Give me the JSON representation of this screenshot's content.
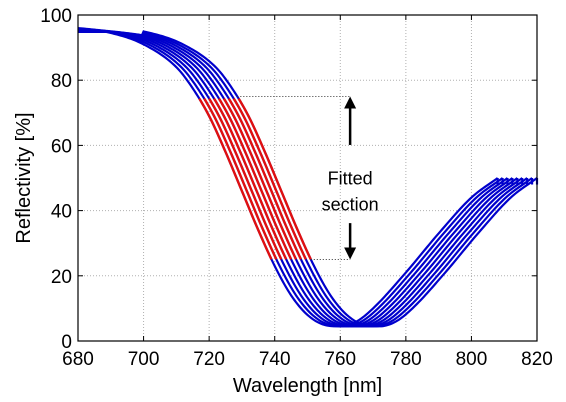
{
  "chart_data": {
    "type": "line",
    "title": "",
    "xlabel": "Wavelength [nm]",
    "ylabel": "Reflectivity [%]",
    "xlim": [
      680,
      820
    ],
    "ylim": [
      0,
      100
    ],
    "xticks": [
      680,
      700,
      720,
      740,
      760,
      780,
      800,
      820
    ],
    "yticks": [
      0,
      20,
      40,
      60,
      80,
      100
    ],
    "xtick_labels": [
      "680",
      "700",
      "720",
      "740",
      "760",
      "780",
      "800",
      "820"
    ],
    "ytick_labels": [
      "0",
      "20",
      "40",
      "60",
      "80",
      "100"
    ],
    "grid": true,
    "legend": "none",
    "colors": {
      "curve": "#0000cc",
      "fitted_section": "#e01010",
      "axis": "#000000",
      "grid": "#b0b0b0"
    },
    "series_shape": {
      "x": [
        680,
        690,
        700,
        710,
        715,
        720,
        725,
        730,
        735,
        740,
        745,
        750,
        755,
        760,
        765,
        770,
        780,
        790,
        800,
        808
      ],
      "y": [
        96,
        94.5,
        91,
        84,
        77.5,
        69,
        58,
        46,
        34,
        23,
        14,
        8,
        5,
        4.5,
        6,
        10,
        21,
        33,
        44,
        50
      ]
    },
    "curve_shifts_nm": [
      0,
      1.5,
      3,
      4.5,
      6,
      7.5,
      9,
      10.5,
      12
    ],
    "fitted_range_y": [
      25,
      75
    ],
    "annotations": {
      "fitted_line1": "Fitted",
      "fitted_line2": "section",
      "arrow_top_y": 75,
      "arrow_bottom_y": 25,
      "arrow_x": 763,
      "dotted_top_y": 75,
      "dotted_bottom_y": 25
    }
  }
}
